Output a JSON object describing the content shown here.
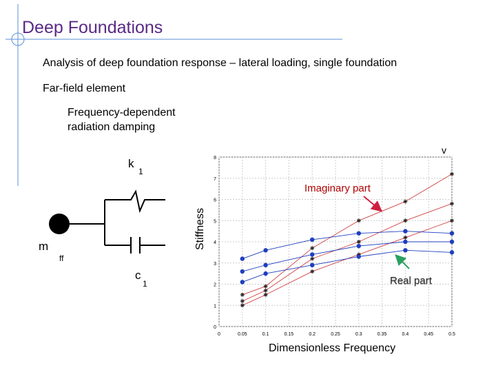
{
  "title": "Deep Foundations",
  "subtitle": "Analysis of deep foundation response – lateral loading, single foundation",
  "far_field": "Far-field element",
  "freq_dep": "Frequency-dependent radiation damping",
  "model": {
    "k": "k",
    "k_sub": "1",
    "m": "m",
    "m_sub": "ff",
    "c": "c",
    "c_sub": "1"
  },
  "annotations": {
    "imaginary": "Imaginary part",
    "real": "Real part",
    "corner": "v"
  },
  "colors": {
    "title": "#5a2a86",
    "imag": "#d04040",
    "real": "#1f3fbf",
    "accent_line": "#5b8fd6"
  },
  "chart_data": {
    "type": "scatter",
    "xlabel": "Dimensionless Frequency",
    "ylabel": "Stiffness",
    "xlim": [
      0,
      0.5
    ],
    "ylim": [
      0,
      8
    ],
    "xticks": [
      "0",
      "0.05",
      "0.1",
      "0.15",
      "0.2",
      "0.25",
      "0.3",
      "0.35",
      "0.4",
      "0.45",
      "0.5"
    ],
    "yticks": [
      "0",
      "1",
      "2",
      "3",
      "4",
      "5",
      "6",
      "7",
      "8"
    ],
    "grid": true,
    "series": [
      {
        "marker": "star",
        "color": "#d04040",
        "x": [
          0.05,
          0.1,
          0.2,
          0.3,
          0.4,
          0.5
        ],
        "y": [
          1.5,
          1.9,
          3.7,
          5.0,
          5.9,
          7.2
        ]
      },
      {
        "marker": "star",
        "color": "#d04040",
        "x": [
          0.05,
          0.1,
          0.2,
          0.3,
          0.4,
          0.5
        ],
        "y": [
          1.2,
          1.7,
          3.2,
          4.0,
          5.0,
          5.8
        ]
      },
      {
        "marker": "star",
        "color": "#d04040",
        "x": [
          0.05,
          0.1,
          0.2,
          0.3,
          0.4,
          0.5
        ],
        "y": [
          1.0,
          1.5,
          2.6,
          3.4,
          4.2,
          5.0
        ]
      },
      {
        "marker": "dot",
        "color": "#1f3fbf",
        "x": [
          0.05,
          0.1,
          0.2,
          0.3,
          0.4,
          0.5
        ],
        "y": [
          3.2,
          3.6,
          4.1,
          4.4,
          4.5,
          4.4
        ]
      },
      {
        "marker": "dot",
        "color": "#1f3fbf",
        "x": [
          0.05,
          0.1,
          0.2,
          0.3,
          0.4,
          0.5
        ],
        "y": [
          2.6,
          2.9,
          3.4,
          3.8,
          4.0,
          4.0
        ]
      },
      {
        "marker": "dot",
        "color": "#1f3fbf",
        "x": [
          0.05,
          0.1,
          0.2,
          0.3,
          0.4,
          0.5
        ],
        "y": [
          2.1,
          2.5,
          2.9,
          3.3,
          3.6,
          3.5
        ]
      }
    ]
  }
}
